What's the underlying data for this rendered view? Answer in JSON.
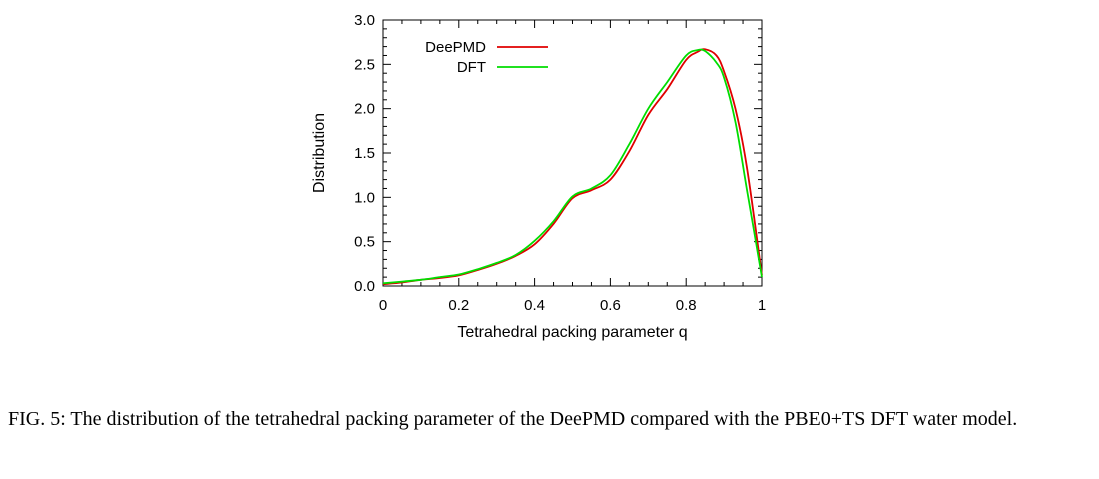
{
  "caption": "FIG. 5: The distribution of the tetrahedral packing parameter of the DeePMD compared with the PBE0+TS DFT water model.",
  "chart_data": {
    "type": "line",
    "xlabel": "Tetrahedral packing parameter q",
    "ylabel": "Distribution",
    "xlim": [
      0,
      1
    ],
    "ylim": [
      0,
      3.0
    ],
    "xticks": [
      "0",
      "0.2",
      "0.4",
      "0.6",
      "0.8",
      "1"
    ],
    "yticks": [
      "0.0",
      "0.5",
      "1.0",
      "1.5",
      "2.0",
      "2.5",
      "3.0"
    ],
    "legend_position": "top-left",
    "grid": false,
    "series": [
      {
        "name": "DeePMD",
        "color": "#e00000",
        "x": [
          0.0,
          0.05,
          0.1,
          0.15,
          0.2,
          0.25,
          0.3,
          0.35,
          0.4,
          0.45,
          0.5,
          0.55,
          0.6,
          0.65,
          0.7,
          0.75,
          0.8,
          0.83,
          0.85,
          0.88,
          0.9,
          0.93,
          0.96,
          1.0
        ],
        "y": [
          0.02,
          0.04,
          0.07,
          0.09,
          0.12,
          0.18,
          0.25,
          0.34,
          0.47,
          0.7,
          0.99,
          1.08,
          1.2,
          1.52,
          1.93,
          2.22,
          2.55,
          2.64,
          2.67,
          2.6,
          2.42,
          2.0,
          1.35,
          0.12
        ]
      },
      {
        "name": "DFT",
        "color": "#00dd00",
        "x": [
          0.0,
          0.05,
          0.1,
          0.15,
          0.2,
          0.25,
          0.3,
          0.35,
          0.4,
          0.45,
          0.5,
          0.55,
          0.6,
          0.65,
          0.7,
          0.75,
          0.8,
          0.83,
          0.85,
          0.88,
          0.9,
          0.93,
          0.96,
          1.0
        ],
        "y": [
          0.03,
          0.05,
          0.07,
          0.1,
          0.13,
          0.19,
          0.26,
          0.35,
          0.51,
          0.73,
          1.01,
          1.1,
          1.25,
          1.6,
          2.0,
          2.3,
          2.6,
          2.66,
          2.65,
          2.52,
          2.35,
          1.85,
          1.1,
          0.1
        ]
      }
    ]
  }
}
